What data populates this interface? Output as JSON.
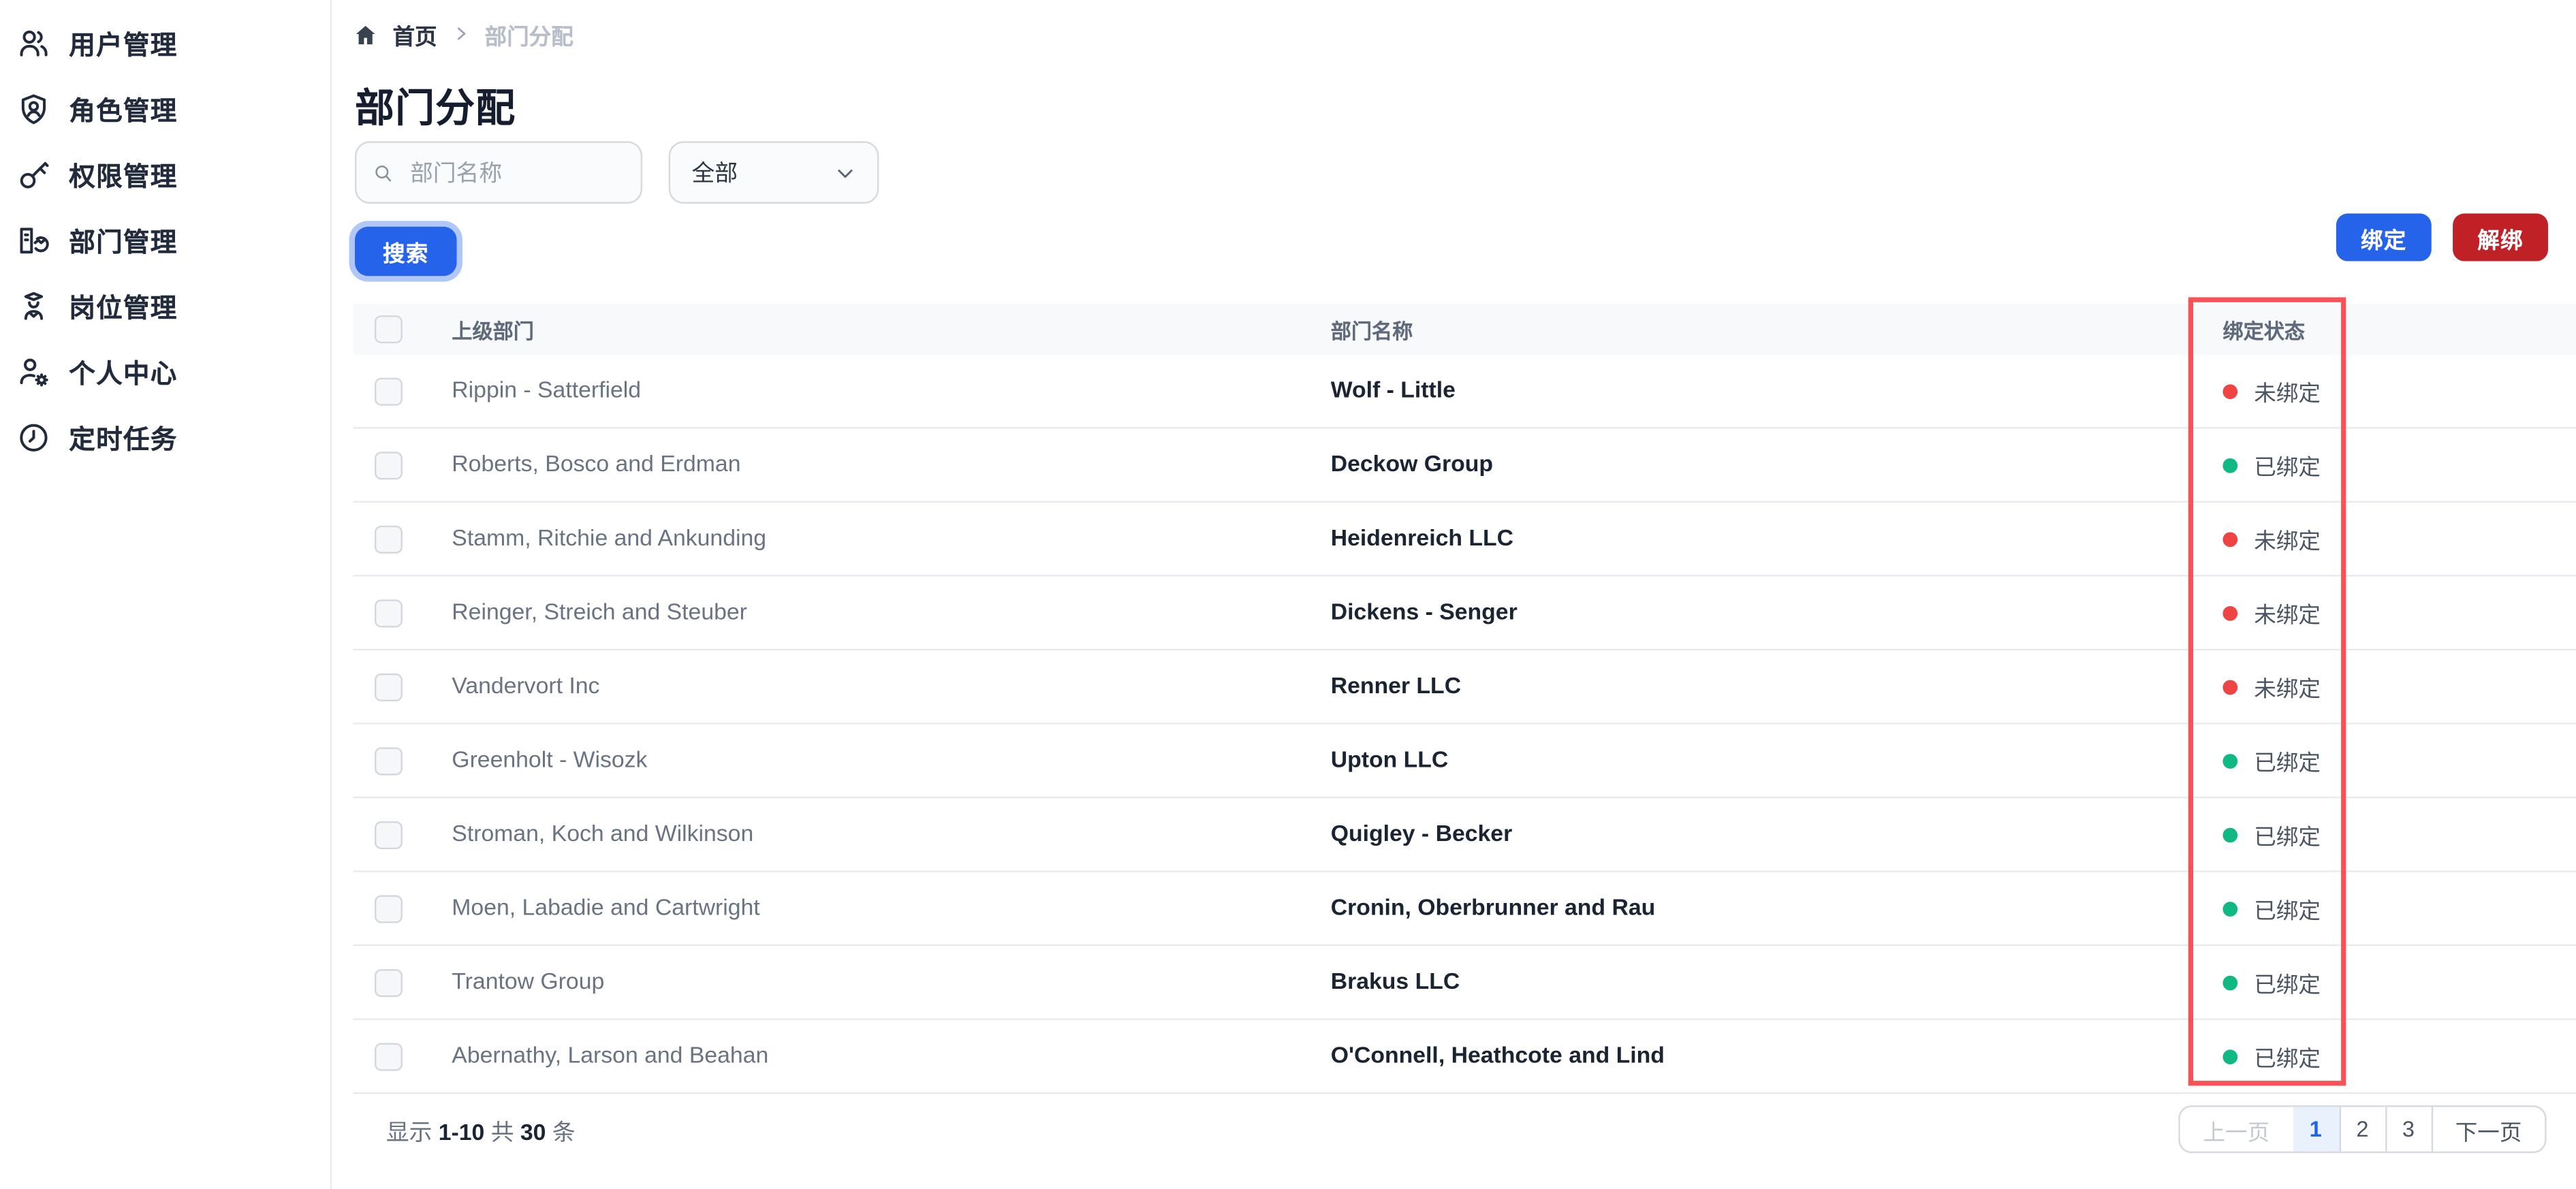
{
  "sidebar": {
    "items": [
      {
        "label": "用户管理",
        "icon": "users-icon"
      },
      {
        "label": "角色管理",
        "icon": "shield-user-icon"
      },
      {
        "label": "权限管理",
        "icon": "key-icon"
      },
      {
        "label": "部门管理",
        "icon": "department-icon"
      },
      {
        "label": "岗位管理",
        "icon": "position-icon"
      },
      {
        "label": "个人中心",
        "icon": "user-gear-icon"
      },
      {
        "label": "定时任务",
        "icon": "clock-icon"
      }
    ]
  },
  "breadcrumb": {
    "home": "首页",
    "current": "部门分配"
  },
  "page": {
    "title": "部门分配"
  },
  "filters": {
    "search_placeholder": "部门名称",
    "search_value": "",
    "status_select_value": "全部",
    "search_button": "搜索"
  },
  "actions": {
    "bind": "绑定",
    "unbind": "解绑"
  },
  "table": {
    "columns": {
      "parent": "上级部门",
      "name": "部门名称",
      "status": "绑定状态"
    },
    "rows": [
      {
        "parent": "Rippin - Satterfield",
        "name": "Wolf - Little",
        "status": "未绑定",
        "bound": false
      },
      {
        "parent": "Roberts, Bosco and Erdman",
        "name": "Deckow Group",
        "status": "已绑定",
        "bound": true
      },
      {
        "parent": "Stamm, Ritchie and Ankunding",
        "name": "Heidenreich LLC",
        "status": "未绑定",
        "bound": false
      },
      {
        "parent": "Reinger, Streich and Steuber",
        "name": "Dickens - Senger",
        "status": "未绑定",
        "bound": false
      },
      {
        "parent": "Vandervort Inc",
        "name": "Renner LLC",
        "status": "未绑定",
        "bound": false
      },
      {
        "parent": "Greenholt - Wisozk",
        "name": "Upton LLC",
        "status": "已绑定",
        "bound": true
      },
      {
        "parent": "Stroman, Koch and Wilkinson",
        "name": "Quigley - Becker",
        "status": "已绑定",
        "bound": true
      },
      {
        "parent": "Moen, Labadie and Cartwright",
        "name": "Cronin, Oberbrunner and Rau",
        "status": "已绑定",
        "bound": true
      },
      {
        "parent": "Trantow Group",
        "name": "Brakus LLC",
        "status": "已绑定",
        "bound": true
      },
      {
        "parent": "Abernathy, Larson and Beahan",
        "name": "O'Connell, Heathcote and Lind",
        "status": "已绑定",
        "bound": true
      }
    ]
  },
  "pagination": {
    "summary_prefix": "显示",
    "summary_range": "1-10",
    "summary_middle": "共",
    "summary_total": "30",
    "summary_suffix": "条",
    "prev": "上一页",
    "next": "下一页",
    "pages": [
      "1",
      "2",
      "3"
    ],
    "active_page": "1"
  },
  "colors": {
    "primary_blue": "#2563eb",
    "danger_red": "#bf2127",
    "status_bound_green": "#10b981",
    "status_unbound_red": "#ef4444",
    "highlight_box_red": "#fb5156"
  }
}
